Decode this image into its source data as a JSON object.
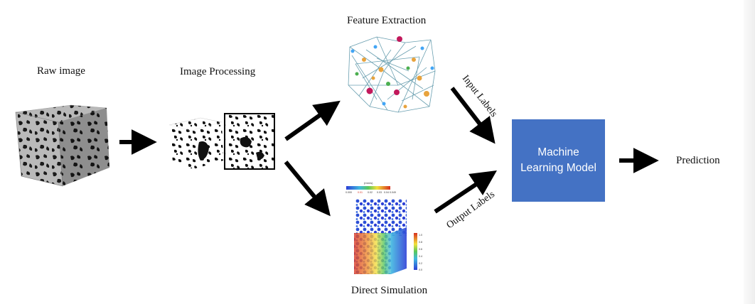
{
  "labels": {
    "raw_image": "Raw image",
    "image_processing": "Image Processing",
    "feature_extraction": "Feature Extraction",
    "direct_simulation": "Direct Simulation",
    "machine_learning_model_line1": "Machine",
    "machine_learning_model_line2": "Learning Model",
    "prediction": "Prediction",
    "input_labels": "Input Labels",
    "output_labels": "Output Labels"
  },
  "colors": {
    "ml_box": "#4472c4",
    "arrow": "#000000",
    "rock_grain": "#b9b9b9",
    "rock_pore": "#1a1a1a",
    "network_edge": "#6a9fb0",
    "sim_high": "#d7301f",
    "sim_low": "#2c3fd6"
  },
  "icons": {
    "raw_image": "porous-rock-cube-image",
    "image_processing": "binarized-rock-images",
    "feature_extraction": "pore-network-graph-image",
    "direct_simulation": "flow-simulation-field-image"
  }
}
